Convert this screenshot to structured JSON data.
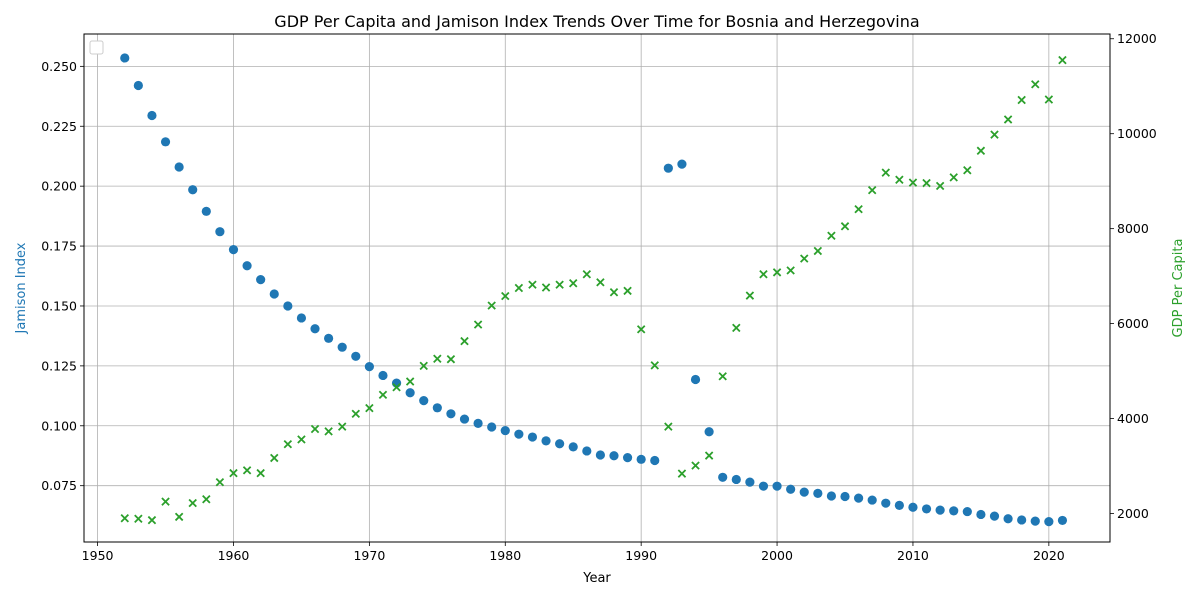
{
  "chart_data": {
    "type": "scatter",
    "title": "GDP Per Capita and Jamison Index Trends Over Time for Bosnia and Herzegovina",
    "xlabel": "Year",
    "ylabel_left": "Jamison Index",
    "ylabel_right": "GDP Per Capita",
    "xlim": [
      1949,
      2024.5
    ],
    "ylim_left": [
      0.0515,
      0.2635
    ],
    "ylim_right": [
      1400,
      12100
    ],
    "x_ticks": [
      1950,
      1960,
      1970,
      1980,
      1990,
      2000,
      2010,
      2020
    ],
    "y_left_ticks": [
      0.075,
      0.1,
      0.125,
      0.15,
      0.175,
      0.2,
      0.225,
      0.25
    ],
    "y_right_ticks": [
      2000,
      4000,
      6000,
      8000,
      10000,
      12000
    ],
    "grid": true,
    "legend": "top-left",
    "colors": {
      "left": "#1f77b4",
      "right": "#2ca02c"
    },
    "series": [
      {
        "marker": "circle",
        "axis": "left",
        "x": [
          1952,
          1953,
          1954,
          1955,
          1956,
          1957,
          1958,
          1959,
          1960,
          1961,
          1962,
          1963,
          1964,
          1965,
          1966,
          1967,
          1968,
          1969,
          1970,
          1971,
          1972,
          1973,
          1974,
          1975,
          1976,
          1977,
          1978,
          1979,
          1980,
          1981,
          1982,
          1983,
          1984,
          1985,
          1986,
          1987,
          1988,
          1989,
          1990,
          1991,
          1992,
          1993,
          1994,
          1995,
          1996,
          1997,
          1998,
          1999,
          2000,
          2001,
          2002,
          2003,
          2004,
          2005,
          2006,
          2007,
          2008,
          2009,
          2010,
          2011,
          2012,
          2013,
          2014,
          2015,
          2016,
          2017,
          2018,
          2019,
          2020,
          2021
        ],
        "values": [
          0.2535,
          0.242,
          0.2295,
          0.2185,
          0.208,
          0.1985,
          0.1895,
          0.181,
          0.1735,
          0.1668,
          0.161,
          0.155,
          0.15,
          0.145,
          0.1405,
          0.1365,
          0.1328,
          0.129,
          0.1247,
          0.121,
          0.1178,
          0.1138,
          0.1105,
          0.1075,
          0.105,
          0.1028,
          0.101,
          0.0995,
          0.098,
          0.0965,
          0.0953,
          0.0937,
          0.0925,
          0.0912,
          0.0895,
          0.0878,
          0.0875,
          0.0867,
          0.086,
          0.0855,
          0.2075,
          0.2092,
          0.1193,
          0.0975,
          0.0785,
          0.0776,
          0.0765,
          0.0748,
          0.0748,
          0.0735,
          0.0723,
          0.0718,
          0.0707,
          0.0705,
          0.0698,
          0.069,
          0.0677,
          0.0668,
          0.066,
          0.0653,
          0.0648,
          0.0645,
          0.0642,
          0.063,
          0.0623,
          0.0612,
          0.0607,
          0.0602,
          0.06,
          0.0605
        ]
      },
      {
        "marker": "x",
        "axis": "right",
        "x": [
          1952,
          1953,
          1954,
          1955,
          1956,
          1957,
          1958,
          1959,
          1960,
          1961,
          1962,
          1963,
          1964,
          1965,
          1966,
          1967,
          1968,
          1969,
          1970,
          1971,
          1972,
          1973,
          1974,
          1975,
          1976,
          1977,
          1978,
          1979,
          1980,
          1981,
          1982,
          1983,
          1984,
          1985,
          1986,
          1987,
          1988,
          1989,
          1990,
          1991,
          1992,
          1993,
          1994,
          1995,
          1996,
          1997,
          1998,
          1999,
          2000,
          2001,
          2002,
          2003,
          2004,
          2005,
          2006,
          2007,
          2008,
          2009,
          2010,
          2011,
          2012,
          2013,
          2014,
          2015,
          2016,
          2017,
          2018,
          2019,
          2020,
          2021
        ],
        "values": [
          1900,
          1890,
          1860,
          2250,
          1930,
          2220,
          2300,
          2660,
          2850,
          2910,
          2850,
          3170,
          3460,
          3560,
          3780,
          3730,
          3830,
          4100,
          4220,
          4500,
          4660,
          4780,
          5110,
          5260,
          5250,
          5630,
          5980,
          6380,
          6580,
          6750,
          6820,
          6760,
          6820,
          6850,
          7040,
          6870,
          6660,
          6690,
          5880,
          5120,
          3830,
          2840,
          3010,
          3220,
          4890,
          5910,
          6590,
          7040,
          7080,
          7120,
          7370,
          7530,
          7850,
          8050,
          8410,
          8810,
          9180,
          9030,
          8970,
          8960,
          8900,
          9080,
          9230,
          9640,
          9980,
          10300,
          10710,
          11040,
          10720,
          11550
        ]
      }
    ]
  }
}
